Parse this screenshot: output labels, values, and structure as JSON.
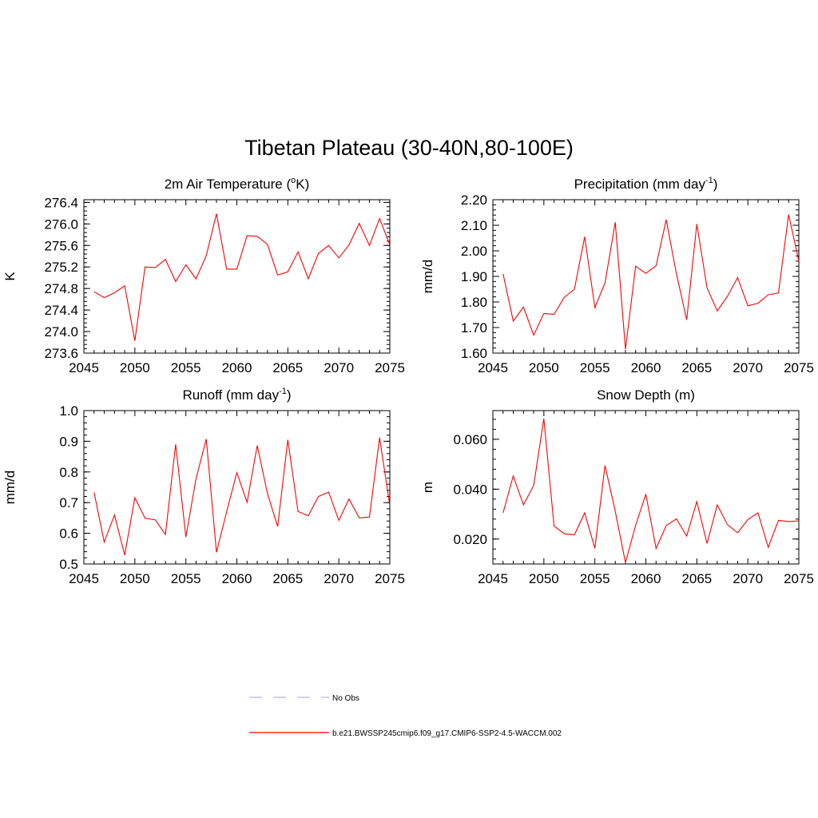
{
  "figure": {
    "title": "Tibetan Plateau (30-40N,80-100E)"
  },
  "legend": {
    "items": [
      {
        "label": "No Obs",
        "color": "#b3b3e6",
        "dash": true
      },
      {
        "label": "b.e21.BWSSP245cmip6.f09_g17.CMIP6-SSP2-4.5-WACCM.002",
        "color": "#ff0000",
        "dash": false
      }
    ]
  },
  "chart_data": [
    {
      "type": "line",
      "title": "2m Air Temperature (",
      "title_sup": "o",
      "title_suffix": "K)",
      "ylabel": "K",
      "xlim": [
        2045,
        2075
      ],
      "ylim": [
        273.6,
        276.45
      ],
      "xticks": [
        "2045",
        "2050",
        "2055",
        "2060",
        "2065",
        "2070",
        "2075"
      ],
      "yticks": [
        "273.6",
        "274.0",
        "274.4",
        "274.8",
        "275.2",
        "275.6",
        "276.0",
        "276.4"
      ],
      "series": [
        {
          "color": "#ff0000",
          "x": [
            2046,
            2047,
            2048,
            2049,
            2050,
            2051,
            2052,
            2053,
            2054,
            2055,
            2056,
            2057,
            2058,
            2059,
            2060,
            2061,
            2062,
            2063,
            2064,
            2065,
            2066,
            2067,
            2068,
            2069,
            2070,
            2071,
            2072,
            2073,
            2074,
            2075
          ],
          "values": [
            274.74,
            274.63,
            274.72,
            274.85,
            273.83,
            275.2,
            275.19,
            275.34,
            274.93,
            275.24,
            274.98,
            275.41,
            276.19,
            275.16,
            275.16,
            275.78,
            275.77,
            275.62,
            275.05,
            275.11,
            275.48,
            274.98,
            275.45,
            275.6,
            275.37,
            275.61,
            276.01,
            275.6,
            276.1,
            275.61
          ]
        }
      ]
    },
    {
      "type": "line",
      "title": "Precipitation (mm day",
      "title_sup": "-1",
      "title_suffix": ")",
      "ylabel": "mm/d",
      "xlim": [
        2045,
        2075
      ],
      "ylim": [
        1.6,
        2.2
      ],
      "xticks": [
        "2045",
        "2050",
        "2055",
        "2060",
        "2065",
        "2070",
        "2075"
      ],
      "yticks": [
        "1.60",
        "1.70",
        "1.80",
        "1.90",
        "2.00",
        "2.10",
        "2.20"
      ],
      "series": [
        {
          "color": "#ff0000",
          "x": [
            2046,
            2047,
            2048,
            2049,
            2050,
            2051,
            2052,
            2053,
            2054,
            2055,
            2056,
            2057,
            2058,
            2059,
            2060,
            2061,
            2062,
            2063,
            2064,
            2065,
            2066,
            2067,
            2068,
            2069,
            2070,
            2071,
            2072,
            2073,
            2074,
            2075
          ],
          "values": [
            1.91,
            1.725,
            1.78,
            1.67,
            1.755,
            1.752,
            1.818,
            1.85,
            2.055,
            1.778,
            1.875,
            2.112,
            1.615,
            1.94,
            1.912,
            1.942,
            2.122,
            1.91,
            1.73,
            2.105,
            1.855,
            1.765,
            1.822,
            1.895,
            1.785,
            1.795,
            1.828,
            1.835,
            2.142,
            1.96
          ]
        }
      ]
    },
    {
      "type": "line",
      "title": "Runoff (mm day",
      "title_sup": "-1",
      "title_suffix": ")",
      "ylabel": "mm/d",
      "xlim": [
        2045,
        2075
      ],
      "ylim": [
        0.5,
        1.0
      ],
      "xticks": [
        "2045",
        "2050",
        "2055",
        "2060",
        "2065",
        "2070",
        "2075"
      ],
      "yticks": [
        "0.5",
        "0.6",
        "0.7",
        "0.8",
        "0.9",
        "1.0"
      ],
      "series": [
        {
          "color": "#ff0000",
          "x": [
            2046,
            2047,
            2048,
            2049,
            2050,
            2051,
            2052,
            2053,
            2054,
            2055,
            2056,
            2057,
            2058,
            2059,
            2060,
            2061,
            2062,
            2063,
            2064,
            2065,
            2066,
            2067,
            2068,
            2069,
            2070,
            2071,
            2072,
            2073,
            2074,
            2075
          ],
          "values": [
            0.733,
            0.571,
            0.66,
            0.529,
            0.716,
            0.649,
            0.644,
            0.596,
            0.89,
            0.588,
            0.778,
            0.907,
            0.538,
            0.67,
            0.798,
            0.701,
            0.886,
            0.73,
            0.622,
            0.905,
            0.671,
            0.657,
            0.72,
            0.734,
            0.642,
            0.712,
            0.65,
            0.653,
            0.912,
            0.69
          ]
        }
      ]
    },
    {
      "type": "line",
      "title": "Snow Depth (m)",
      "title_sup": "",
      "title_suffix": "",
      "ylabel": "m",
      "xlim": [
        2045,
        2075
      ],
      "ylim": [
        0.01,
        0.0715
      ],
      "xticks": [
        "2045",
        "2050",
        "2055",
        "2060",
        "2065",
        "2070",
        "2075"
      ],
      "yticks": [
        "0.020",
        "0.040",
        "0.060"
      ],
      "ytick_values": [
        0.02,
        0.04,
        0.06
      ],
      "series": [
        {
          "color": "#ff0000",
          "x": [
            2046,
            2047,
            2048,
            2049,
            2050,
            2051,
            2052,
            2053,
            2054,
            2055,
            2056,
            2057,
            2058,
            2059,
            2060,
            2061,
            2062,
            2063,
            2064,
            2065,
            2066,
            2067,
            2068,
            2069,
            2070,
            2071,
            2072,
            2073,
            2074,
            2075
          ],
          "values": [
            0.0305,
            0.0453,
            0.0337,
            0.0415,
            0.0683,
            0.0252,
            0.0221,
            0.0217,
            0.0305,
            0.0163,
            0.0495,
            0.0311,
            0.0105,
            0.0255,
            0.038,
            0.0162,
            0.0254,
            0.0281,
            0.0212,
            0.035,
            0.0182,
            0.0337,
            0.0258,
            0.0225,
            0.0278,
            0.0305,
            0.0167,
            0.0275,
            0.027,
            0.0273
          ]
        }
      ]
    }
  ]
}
